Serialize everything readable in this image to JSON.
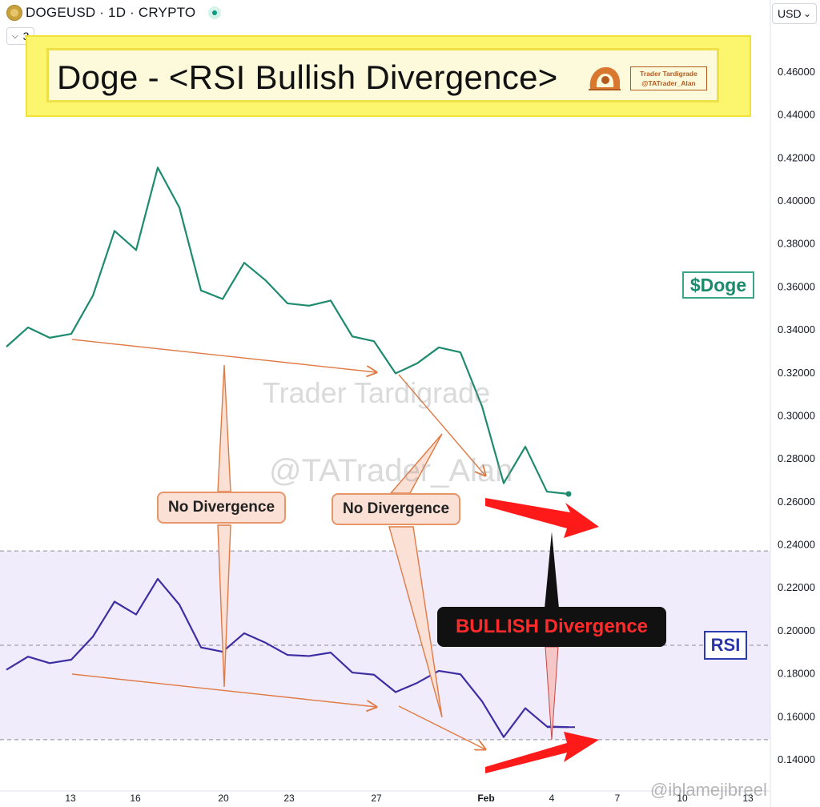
{
  "header": {
    "symbol_line": "DOGEUSD · 1D · CRYPTO",
    "indicator_count": "3",
    "currency": "USD",
    "currency_caret": "⌄"
  },
  "banner": {
    "title": "Doge - <RSI Bullish Divergence>",
    "logo_line1": "Trader Tardigrade",
    "logo_line2": "@TATrader_Alan"
  },
  "labels": {
    "doge_badge": "$Doge",
    "rsi_badge": "RSI",
    "no_divergence_1": "No Divergence",
    "no_divergence_2": "No Divergence",
    "bullish": "BULLISH Divergence"
  },
  "watermarks": {
    "name": "Trader Tardigrade",
    "handle": "@TATrader_Alan",
    "footer": "@iblamejibreel"
  },
  "colors": {
    "price_line": "#1e8a6e",
    "rsi_line": "#3d2ea3",
    "annotation": "#e07a45",
    "bull_arrow": "#ff1a1a",
    "rsi_band": "#f0ecfb"
  },
  "chart_data": {
    "type": "line",
    "title": "Doge - <RSI Bullish Divergence>",
    "y_axis": {
      "ticks": [
        "0.14000",
        "0.16000",
        "0.18000",
        "0.20000",
        "0.22000",
        "0.24000",
        "0.26000",
        "0.28000",
        "0.30000",
        "0.32000",
        "0.34000",
        "0.36000",
        "0.38000",
        "0.40000",
        "0.42000",
        "0.44000",
        "0.46000"
      ],
      "range": [
        0.134,
        0.48
      ],
      "position": "right"
    },
    "x_axis": {
      "tick_labels": [
        "13",
        "16",
        "20",
        "23",
        "27",
        "Feb",
        "4",
        "7",
        "10",
        "13"
      ],
      "unit": "day"
    },
    "series": [
      {
        "name": "$Doge",
        "y": [
          0.3318,
          0.3408,
          0.336,
          0.3378,
          0.3556,
          0.3857,
          0.3768,
          0.4152,
          0.3966,
          0.358,
          0.354,
          0.3709,
          0.3626,
          0.352,
          0.3509,
          0.3533,
          0.3366,
          0.3344,
          0.3194,
          0.3241,
          0.3315,
          0.3292,
          0.304,
          0.2683,
          0.2853,
          0.2644,
          0.2633
        ]
      },
      {
        "name": "RSI",
        "y": [
          0.1815,
          0.1876,
          0.1846,
          0.1862,
          0.1969,
          0.2132,
          0.2072,
          0.2238,
          0.2118,
          0.1919,
          0.1899,
          0.1985,
          0.194,
          0.1884,
          0.1879,
          0.1895,
          0.1802,
          0.1792,
          0.1711,
          0.1754,
          0.181,
          0.1794,
          0.1668,
          0.1502,
          0.1636,
          0.1551,
          0.1548
        ]
      }
    ],
    "rsi_band": {
      "upper": 0.2368,
      "middle": 0.1929,
      "lower": 0.149
    },
    "grid": false
  }
}
